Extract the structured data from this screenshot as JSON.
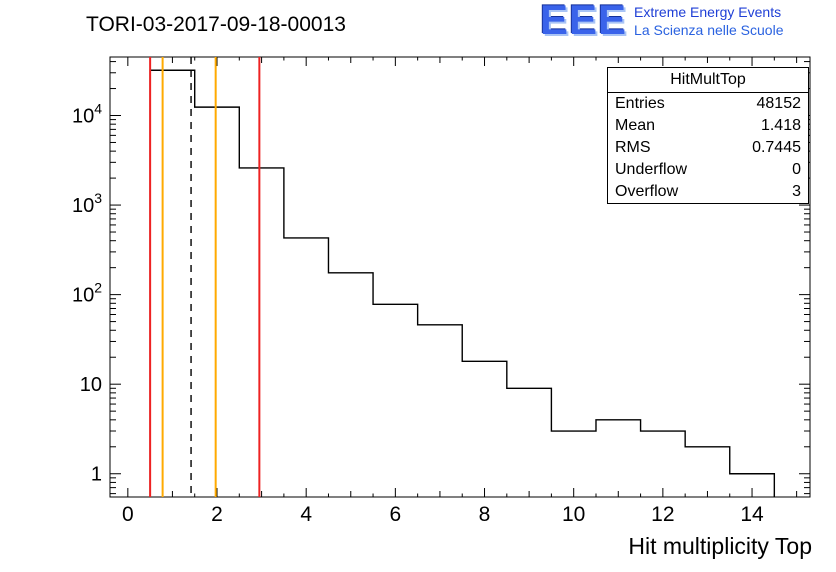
{
  "header": {
    "title": "TORI-03-2017-09-18-00013"
  },
  "logo": {
    "wordmark": "EEE",
    "line1": "Extreme Energy Events",
    "line2": "La Scienza nelle Scuole",
    "accent_color": "#2244dd"
  },
  "stats": {
    "title": "HitMultTop",
    "rows": [
      {
        "label": "Entries",
        "value": "48152"
      },
      {
        "label": "Mean",
        "value": "1.418"
      },
      {
        "label": "RMS",
        "value": "0.7445"
      },
      {
        "label": "Underflow",
        "value": "0"
      },
      {
        "label": "Overflow",
        "value": "3"
      }
    ]
  },
  "chart_data": {
    "type": "bar",
    "subtype": "step-histogram",
    "title": "TORI-03-2017-09-18-00013",
    "xlabel": "Hit multiplicity Top",
    "ylabel": "",
    "y_scale": "log",
    "grid": false,
    "xlim": [
      -0.4,
      15.3
    ],
    "ylim": [
      0.55,
      45000
    ],
    "bin_width": 1,
    "bin_centers": [
      1,
      2,
      3,
      4,
      5,
      6,
      7,
      8,
      9,
      10,
      11,
      12,
      13,
      14
    ],
    "counts": [
      32000,
      12400,
      2600,
      430,
      175,
      78,
      46,
      18,
      9,
      3,
      4,
      3,
      2,
      1
    ],
    "x_major_ticks": [
      0,
      2,
      4,
      6,
      8,
      10,
      12,
      14
    ],
    "y_ticks": [
      {
        "v": 1,
        "base": "1",
        "exp": ""
      },
      {
        "v": 10,
        "base": "10",
        "exp": ""
      },
      {
        "v": 100,
        "base": "10",
        "exp": "2"
      },
      {
        "v": 1000,
        "base": "10",
        "exp": "3"
      },
      {
        "v": 10000,
        "base": "10",
        "exp": "4"
      }
    ],
    "line_color": "#000000",
    "marker_lines": [
      {
        "x": 0.5,
        "color": "#ee2222",
        "style": "solid"
      },
      {
        "x": 0.78,
        "color": "#ffaa00",
        "style": "solid"
      },
      {
        "x": 1.418,
        "color": "#000000",
        "style": "dashed"
      },
      {
        "x": 1.97,
        "color": "#ffaa00",
        "style": "solid"
      },
      {
        "x": 2.95,
        "color": "#ee2222",
        "style": "solid"
      }
    ]
  }
}
